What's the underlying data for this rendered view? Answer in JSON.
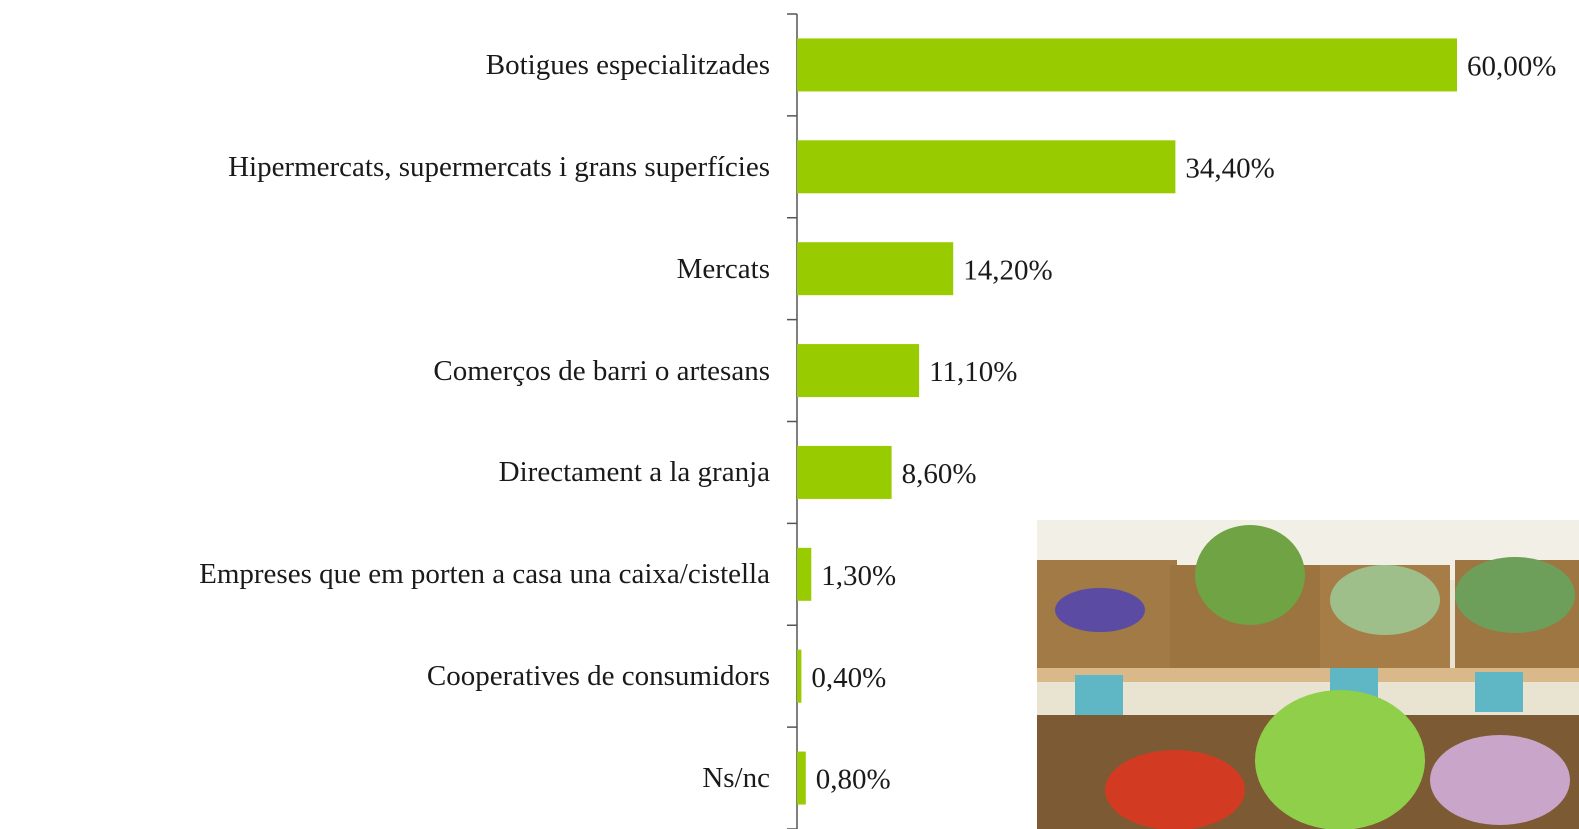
{
  "chart_data": {
    "type": "bar",
    "orientation": "horizontal",
    "categories": [
      "Botigues especialitzades",
      "Hipermercats, supermercats i grans superfícies",
      "Mercats",
      "Comerços de barri o artesans",
      "Directament a la granja",
      "Empreses que em porten a casa una caixa/cistella",
      "Cooperatives de consumidors",
      "Ns/nc"
    ],
    "values": [
      60,
      34.4,
      14.2,
      11.1,
      8.6,
      1.3,
      0.4,
      0.8
    ],
    "value_labels": [
      "60,00%",
      "34,40%",
      "14,20%",
      "11,10%",
      "8,60%",
      "1,30%",
      "0,40%",
      "0,80%"
    ],
    "color": "#99cc00"
  }
}
